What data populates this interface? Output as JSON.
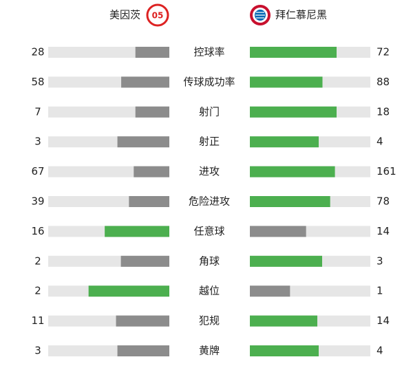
{
  "chart_data": {
    "type": "butterfly",
    "categories": [
      "控球率",
      "传球成功率",
      "射门",
      "射正",
      "进攻",
      "危险进攻",
      "任意球",
      "角球",
      "越位",
      "犯规",
      "黄牌"
    ],
    "series": [
      {
        "name": "美因茨",
        "values": [
          28,
          58,
          7,
          3,
          67,
          39,
          16,
          2,
          2,
          11,
          3
        ]
      },
      {
        "name": "拜仁慕尼黑",
        "values": [
          72,
          88,
          18,
          4,
          161,
          78,
          14,
          3,
          1,
          14,
          4
        ]
      }
    ],
    "win_color": "#4caf4f",
    "lose_color": "#8c8c8c",
    "track_color": "#e6e6e6"
  }
}
